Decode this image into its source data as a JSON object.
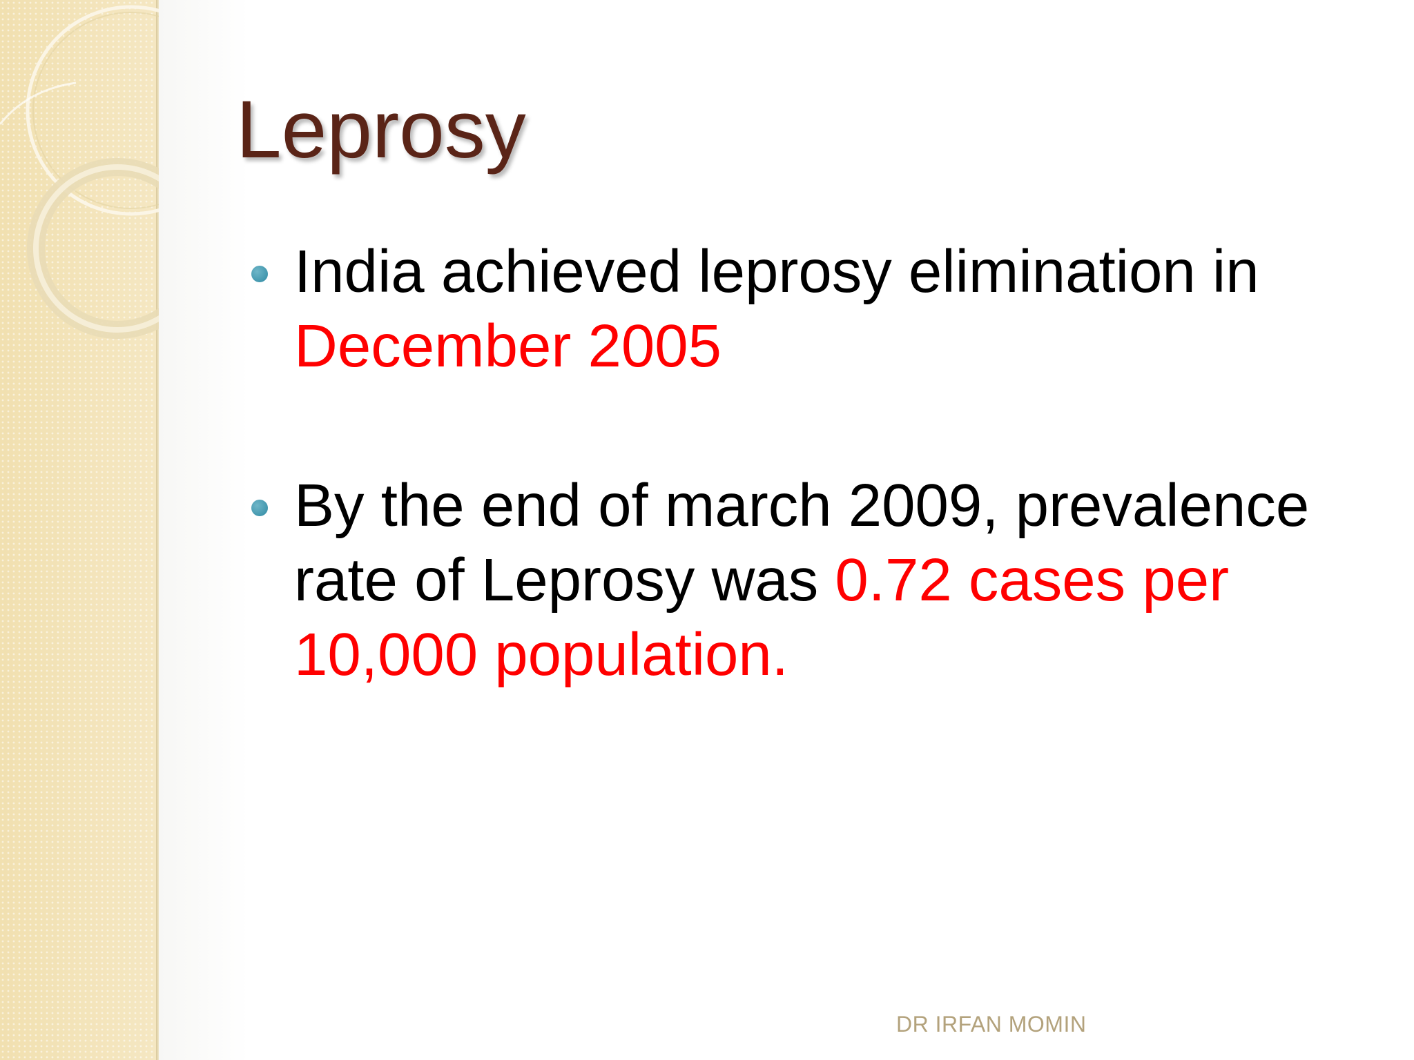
{
  "slide": {
    "title": "Leprosy",
    "bullets": [
      {
        "segments": [
          {
            "text": "India achieved leprosy elimination in ",
            "emphasis": false
          },
          {
            "text": "December 2005",
            "emphasis": true
          }
        ]
      },
      {
        "segments": [
          {
            "text": "By the end of march 2009, prevalence rate of  Leprosy was ",
            "emphasis": false
          },
          {
            "text": "0.72  cases per 10,000 population.",
            "emphasis": true
          }
        ]
      }
    ],
    "footer": "DR IRFAN MOMIN"
  },
  "colors": {
    "title": "#5a2417",
    "body_text": "#000000",
    "emphasis": "#ff0000",
    "bullet_marker": "#3a92aa",
    "footer": "#b3a27c",
    "side_panel": "#f3e4b8"
  },
  "icons": {
    "bullet_marker": "bullet-dot-icon",
    "decoration": "ring-decoration-icon"
  }
}
